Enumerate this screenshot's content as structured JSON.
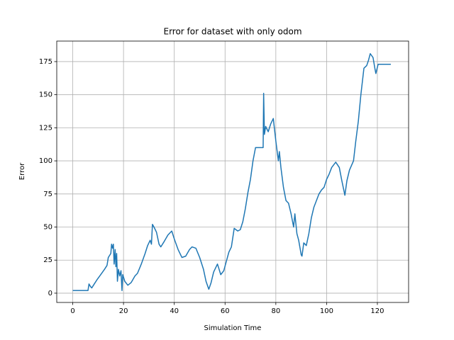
{
  "chart_data": {
    "type": "line",
    "title": "Error for dataset with only odom",
    "xlabel": "Simulation Time",
    "ylabel": "Error",
    "x": [
      0,
      6,
      6.4,
      7,
      7.5,
      8.5,
      9.5,
      11,
      12.5,
      13.5,
      14,
      15,
      15.3,
      15.7,
      16,
      16.3,
      16.7,
      17,
      17.3,
      17.6,
      18,
      18.5,
      19,
      19.4,
      19.7,
      20.5,
      21.7,
      23,
      24.5,
      25.5,
      27,
      28.5,
      29.5,
      30.5,
      31,
      31.4,
      32,
      33,
      34,
      34.7,
      36,
      37.5,
      39,
      40,
      41.5,
      43,
      44.5,
      46,
      47,
      48.5,
      50,
      51.5,
      52.5,
      53.6,
      54.5,
      55.5,
      57,
      57.5,
      58.3,
      59.5,
      60.5,
      61.5,
      62.5,
      63.6,
      65,
      66,
      67,
      68,
      69,
      70,
      71,
      72,
      75,
      75.2,
      75.5,
      76,
      77,
      78,
      79,
      80,
      81,
      81.4,
      82,
      83,
      84,
      85,
      86,
      87,
      87.5,
      88.3,
      89,
      90,
      90.3,
      91,
      92,
      93,
      94,
      95,
      96,
      97,
      98,
      99,
      100,
      101,
      102,
      103.6,
      105,
      106,
      107.2,
      108,
      109,
      110.6,
      111.5,
      112.5,
      113.5,
      114.7,
      115.8,
      116.5,
      117.2,
      118.3,
      119,
      119.4,
      120.3,
      125.3
    ],
    "values": [
      2,
      2,
      7,
      5,
      4,
      7,
      10,
      14,
      18,
      21,
      27,
      30,
      37,
      34,
      37,
      22,
      33,
      20,
      30,
      9,
      18,
      13,
      17,
      2,
      14,
      9,
      6,
      8,
      13,
      15,
      22,
      30,
      36,
      40,
      37,
      52,
      50,
      46,
      37,
      35,
      39,
      44,
      47,
      41,
      33,
      27,
      28,
      33,
      35,
      34,
      27,
      18,
      9,
      3,
      8,
      16,
      22,
      19,
      14,
      17,
      24,
      31,
      35,
      49,
      47,
      48,
      54,
      64,
      76,
      86,
      100,
      110,
      110,
      151,
      120,
      126,
      122,
      128,
      132,
      115,
      100,
      107,
      95,
      80,
      70,
      68,
      60,
      50,
      60,
      45,
      40,
      29,
      28,
      38,
      36,
      45,
      57,
      65,
      70,
      75,
      78,
      80,
      86,
      90,
      95,
      99,
      95,
      85,
      74,
      85,
      93,
      100,
      115,
      130,
      150,
      170,
      172,
      176,
      181,
      178,
      170,
      166,
      173,
      173
    ],
    "color": "#1f77b4",
    "xlim": [
      -6.3,
      132.3
    ],
    "ylim": [
      -7,
      190.5
    ],
    "xticks": [
      0,
      20,
      40,
      60,
      80,
      100,
      120
    ],
    "yticks": [
      0,
      25,
      50,
      75,
      100,
      125,
      150,
      175
    ],
    "grid": true
  }
}
